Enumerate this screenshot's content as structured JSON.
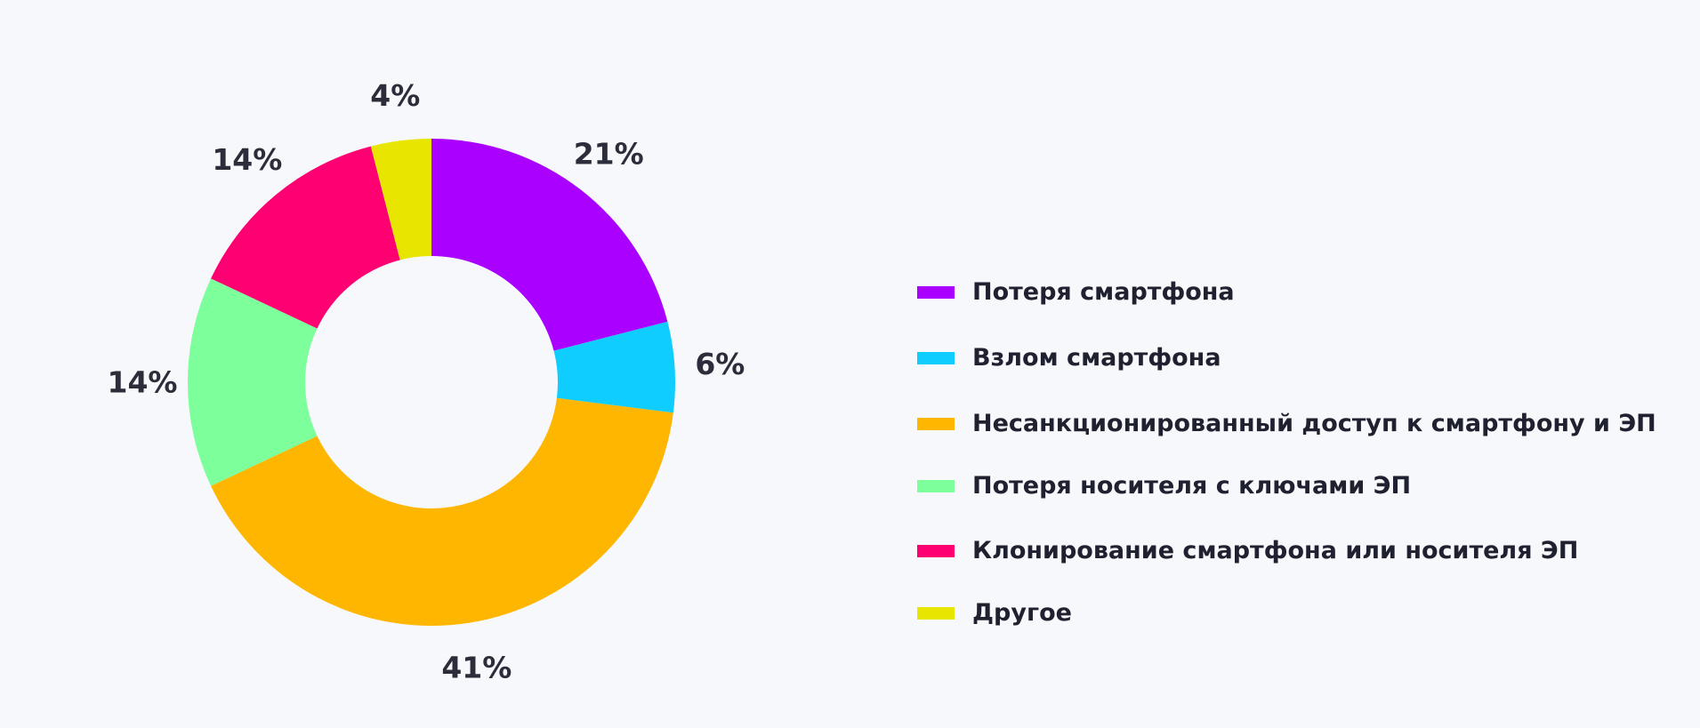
{
  "chart_data": {
    "type": "pie",
    "donut": true,
    "values": [
      21,
      6,
      41,
      14,
      14,
      4
    ],
    "value_labels": [
      "21%",
      "6%",
      "41%",
      "14%",
      "14%",
      "4%"
    ],
    "categories": [
      "Потеря смартфона",
      "Взлом смартфона",
      "Несанкционированный доступ к смартфону и ЭП",
      "Потеря носителя с ключами ЭП",
      "Клонирование смартфона или носителя ЭП",
      "Другое"
    ],
    "colors": [
      "#aa00ff",
      "#10cdff",
      "#ffb600",
      "#7dff9c",
      "#ff0073",
      "#e8e600"
    ],
    "legend_placement": "right",
    "title": "",
    "xlabel": "",
    "ylabel": ""
  }
}
